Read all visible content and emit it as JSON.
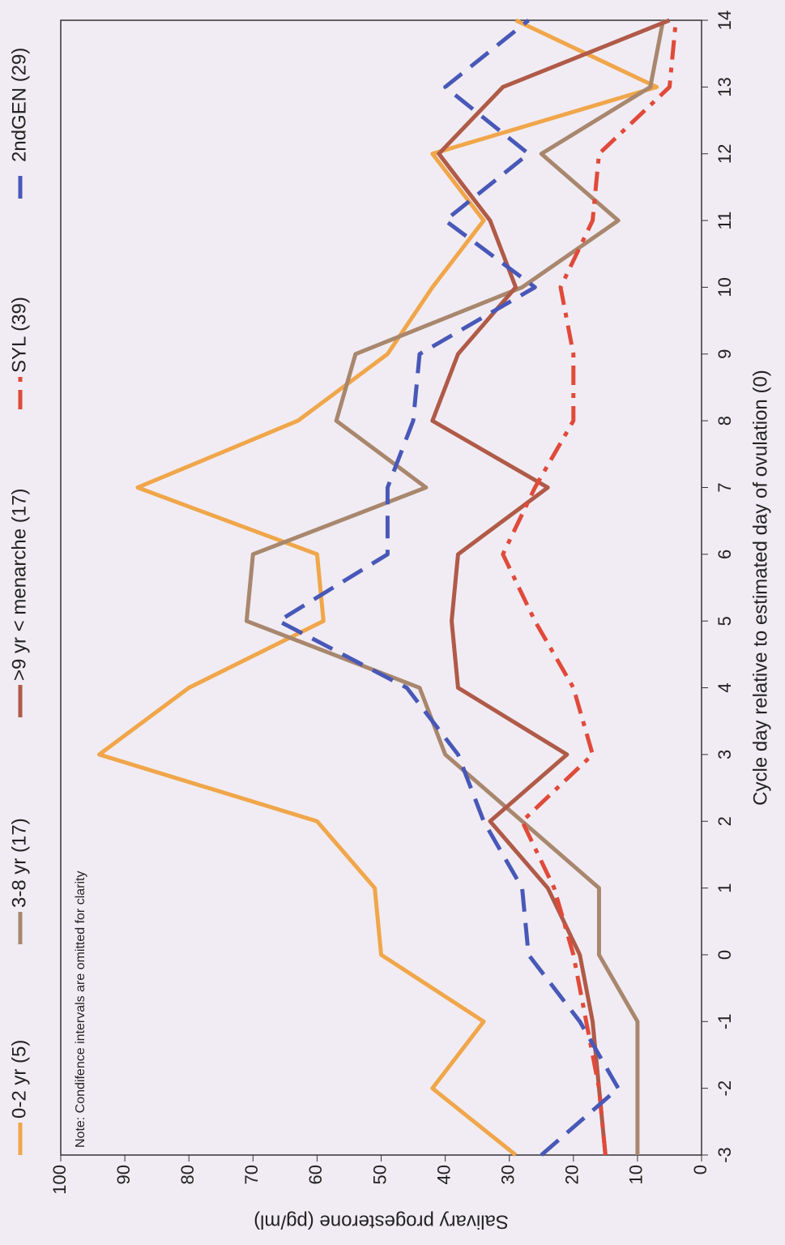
{
  "chart_data": {
    "type": "line",
    "note": "Note: Condifence intervals are omitted for clarity",
    "x_label": "Cycle day relative to estimated day of ovulation (0)",
    "y_label": "Salivary progesterone (pg/ml)",
    "x": [
      -3,
      -2,
      -1,
      0,
      1,
      2,
      3,
      4,
      5,
      6,
      7,
      8,
      9,
      10,
      11,
      12,
      13,
      14
    ],
    "xlim": [
      -3,
      14
    ],
    "xticks": [
      -3,
      -2,
      -1,
      0,
      1,
      2,
      3,
      4,
      5,
      6,
      7,
      8,
      9,
      10,
      11,
      12,
      13,
      14
    ],
    "ylim": [
      0,
      100
    ],
    "yticks": [
      0,
      10,
      20,
      30,
      40,
      50,
      60,
      70,
      80,
      90,
      100
    ],
    "series": [
      {
        "name": "0-2 yr (5)",
        "color": "#f0a64a",
        "dash": "solid",
        "values": [
          29,
          42,
          34,
          50,
          51,
          60,
          94,
          80,
          59,
          60,
          88,
          63,
          49,
          42,
          34,
          42,
          7,
          29
        ]
      },
      {
        "name": "3-8 yr (17)",
        "color": "#a8876e",
        "dash": "solid",
        "values": [
          10,
          10,
          10,
          16,
          16,
          28,
          40,
          44,
          71,
          70,
          43,
          57,
          54,
          28,
          13,
          25,
          8,
          6
        ]
      },
      {
        "name": ">9 yr < menarche (17)",
        "color": "#b05a48",
        "dash": "solid",
        "values": [
          15,
          16,
          17,
          19,
          24,
          33,
          21,
          38,
          39,
          38,
          24,
          42,
          38,
          29,
          33,
          41,
          31,
          5
        ]
      },
      {
        "name": "SYL (39)",
        "color": "#e04a3a",
        "dash": "dashdot",
        "values": [
          15,
          16,
          18,
          20,
          23,
          28,
          17,
          20,
          26,
          31,
          26,
          20,
          20,
          22,
          17,
          16,
          5,
          4
        ]
      },
      {
        "name": "2ndGEN (29)",
        "color": "#4858b8",
        "dash": "dash",
        "values": [
          25,
          13,
          19,
          27,
          28,
          34,
          38,
          46,
          66,
          49,
          49,
          45,
          44,
          26,
          40,
          27,
          40,
          27
        ]
      }
    ]
  }
}
